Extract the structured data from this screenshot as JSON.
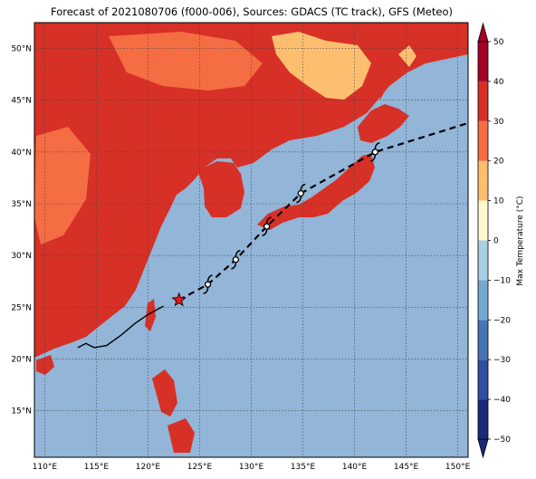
{
  "title": "Forecast of 2021080706 (f000-006), Sources: GDACS (TC track), GFS (Meteo)",
  "map": {
    "lon_range": [
      109,
      151
    ],
    "lat_range": [
      10.5,
      52.5
    ],
    "lon_ticks": [
      "110°E",
      "115°E",
      "120°E",
      "125°E",
      "130°E",
      "135°E",
      "140°E",
      "145°E",
      "150°E"
    ],
    "lat_ticks": [
      "15°N",
      "20°N",
      "25°N",
      "30°N",
      "35°N",
      "40°N",
      "45°N",
      "50°N"
    ],
    "grid": true,
    "ocean_color": "#92b5d8"
  },
  "colorbar": {
    "label": "Max Temperature (°C)",
    "ticks": [
      "−50",
      "−40",
      "−30",
      "−20",
      "−10",
      "0",
      "10",
      "20",
      "30",
      "40",
      "50"
    ],
    "colors": [
      "#1a2a7a",
      "#2f4fa0",
      "#4575b4",
      "#74a9cf",
      "#a6cfe3",
      "#e0f3f8",
      "#fff7cf",
      "#fdbf6f",
      "#f46d43",
      "#d73027",
      "#a50026"
    ],
    "extend": "both"
  },
  "track": {
    "points_lonlat": [
      [
        123,
        25.7
      ],
      [
        125.8,
        27.2
      ],
      [
        128.5,
        29.6
      ],
      [
        131.5,
        32.8
      ],
      [
        134.8,
        36.0
      ],
      [
        142.0,
        40.0
      ],
      [
        151,
        42.8
      ]
    ],
    "style": "dashed",
    "current_marker": "red-star",
    "storm_symbol": "cyclone-icon"
  },
  "past_track": {
    "points_lonlat": [
      [
        113.2,
        21.1
      ],
      [
        114.0,
        21.5
      ],
      [
        114.8,
        21.1
      ],
      [
        116.0,
        21.3
      ],
      [
        117.4,
        22.3
      ],
      [
        118.7,
        23.4
      ],
      [
        120.0,
        24.3
      ],
      [
        121.5,
        25.1
      ]
    ]
  }
}
